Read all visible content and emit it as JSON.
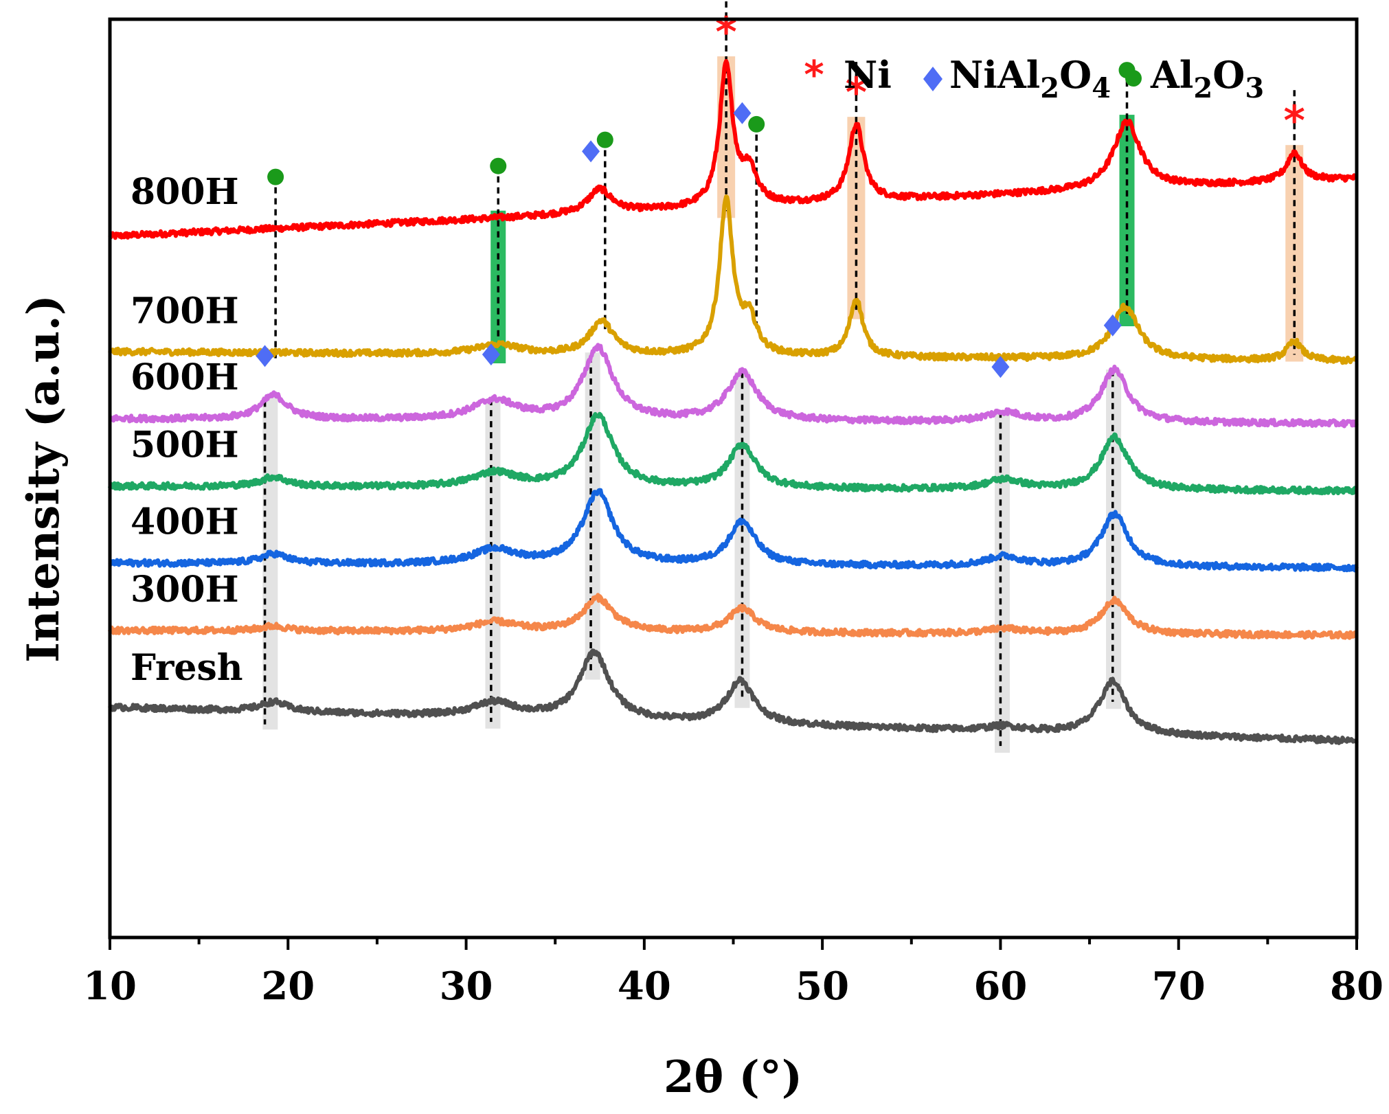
{
  "chart_data": {
    "type": "line",
    "xlabel": "2θ (°)",
    "ylabel": "Intensity (a.u.)",
    "xlim": [
      10,
      80
    ],
    "x_ticks": [
      10,
      20,
      30,
      40,
      50,
      60,
      70,
      80
    ],
    "y_ticks_shown": false,
    "grid": false,
    "legend_position": "top-right",
    "legend": [
      {
        "label": "Ni",
        "marker": "asterisk",
        "color": "#ff1a1a"
      },
      {
        "label": "NiAl2O4",
        "marker": "diamond",
        "color": "#4f6df5"
      },
      {
        "label": "Al2O3",
        "marker": "circle",
        "color": "#1a9a1a"
      }
    ],
    "series": [
      {
        "name": "800H",
        "color": "#ff0000",
        "offset": 7.4,
        "baseline_start": 0.0,
        "baseline_end": 0.6,
        "peaks": [
          [
            37.5,
            0.25,
            0.8
          ],
          [
            44.6,
            1.45,
            0.45
          ],
          [
            45.9,
            0.35,
            0.5
          ],
          [
            51.9,
            0.8,
            0.5
          ],
          [
            67.1,
            0.7,
            0.9
          ],
          [
            76.5,
            0.3,
            0.5
          ]
        ]
      },
      {
        "name": "700H",
        "color": "#d9a000",
        "offset": 6.2,
        "baseline_start": 0.0,
        "baseline_end": -0.1,
        "peaks": [
          [
            31.8,
            0.1,
            1.5
          ],
          [
            37.6,
            0.35,
            0.8
          ],
          [
            44.6,
            1.6,
            0.45
          ],
          [
            45.9,
            0.35,
            0.5
          ],
          [
            51.9,
            0.6,
            0.45
          ],
          [
            67.0,
            0.55,
            0.9
          ],
          [
            76.5,
            0.2,
            0.5
          ]
        ]
      },
      {
        "name": "600H",
        "color": "#cc66dd",
        "offset": 5.5,
        "baseline_start": 0.0,
        "baseline_end": -0.05,
        "peaks": [
          [
            19.2,
            0.25,
            0.9
          ],
          [
            31.6,
            0.2,
            1.5
          ],
          [
            37.4,
            0.75,
            1.0
          ],
          [
            45.5,
            0.5,
            1.0
          ],
          [
            60.2,
            0.1,
            1.2
          ],
          [
            66.4,
            0.55,
            0.9
          ]
        ]
      },
      {
        "name": "500H",
        "color": "#1fa864",
        "offset": 4.8,
        "baseline_start": 0.0,
        "baseline_end": -0.05,
        "peaks": [
          [
            19.2,
            0.1,
            0.9
          ],
          [
            31.6,
            0.15,
            1.5
          ],
          [
            37.4,
            0.75,
            1.0
          ],
          [
            45.5,
            0.45,
            0.9
          ],
          [
            60.2,
            0.1,
            1.2
          ],
          [
            66.4,
            0.55,
            0.9
          ]
        ]
      },
      {
        "name": "400H",
        "color": "#1565e0",
        "offset": 4.0,
        "baseline_start": 0.0,
        "baseline_end": -0.05,
        "peaks": [
          [
            19.2,
            0.1,
            0.9
          ],
          [
            31.6,
            0.15,
            1.5
          ],
          [
            37.4,
            0.75,
            1.0
          ],
          [
            45.5,
            0.45,
            0.9
          ],
          [
            60.2,
            0.1,
            1.2
          ],
          [
            66.4,
            0.55,
            0.9
          ]
        ]
      },
      {
        "name": "300H",
        "color": "#f5874a",
        "offset": 3.3,
        "baseline_start": 0.0,
        "baseline_end": -0.05,
        "peaks": [
          [
            19.2,
            0.05,
            0.9
          ],
          [
            31.6,
            0.1,
            1.5
          ],
          [
            37.4,
            0.35,
            1.0
          ],
          [
            45.5,
            0.25,
            0.9
          ],
          [
            60.2,
            0.05,
            1.2
          ],
          [
            66.4,
            0.35,
            0.9
          ]
        ]
      },
      {
        "name": "Fresh",
        "color": "#505050",
        "offset": 2.5,
        "baseline_start": 0.0,
        "baseline_end": -0.35,
        "peaks": [
          [
            19.2,
            0.1,
            0.9
          ],
          [
            31.6,
            0.15,
            1.5
          ],
          [
            37.2,
            0.7,
            1.0
          ],
          [
            45.4,
            0.45,
            0.9
          ],
          [
            60.2,
            0.05,
            1.2
          ],
          [
            66.3,
            0.55,
            0.9
          ]
        ]
      }
    ],
    "annotations": {
      "ni_positions": [
        44.6,
        51.9,
        76.5
      ],
      "nial2o4_positions": [
        18.7,
        31.4,
        37.0,
        45.5,
        60.0,
        66.3
      ],
      "al2o3_positions": [
        19.3,
        31.8,
        37.8,
        46.3,
        67.1
      ]
    }
  }
}
